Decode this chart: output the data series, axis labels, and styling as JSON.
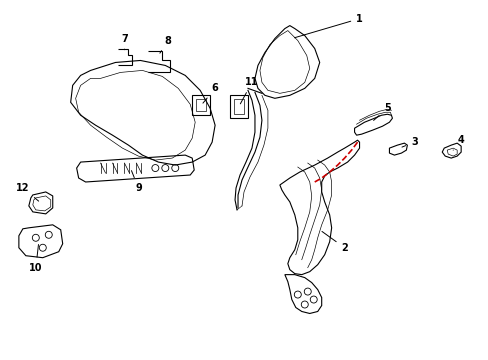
{
  "background_color": "#ffffff",
  "line_color": "#000000",
  "red_color": "#cc0000",
  "figsize": [
    4.89,
    3.6
  ],
  "dpi": 100,
  "lw": 0.8
}
